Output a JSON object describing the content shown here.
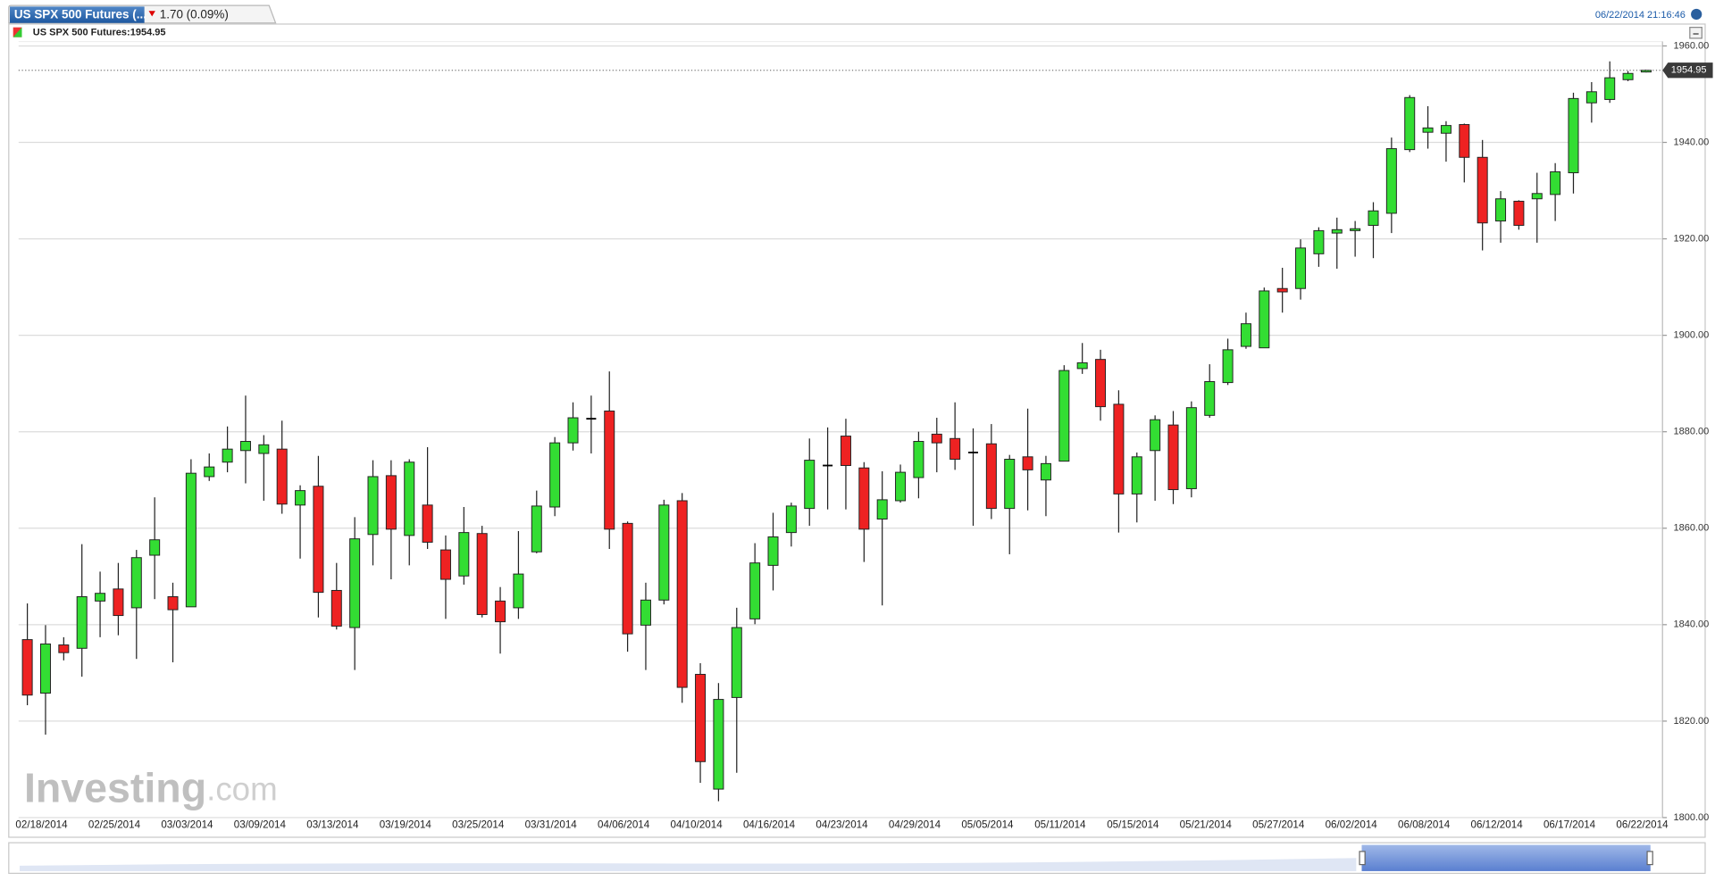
{
  "header": {
    "tab_title": "US SPX 500 Futures (...",
    "change": "1.70 (0.09%)",
    "timestamp": "06/22/2014 21:16:46"
  },
  "watermark": [
    "Investing",
    ".com"
  ],
  "chart_data": {
    "type": "candlestick",
    "title": "US SPX 500 Futures:1954.95",
    "up_color": "#33dd33",
    "down_color": "#ee2222",
    "flat_color": "#000000",
    "categories": [
      "02/18/2014",
      null,
      null,
      null,
      "02/25/2014",
      null,
      null,
      null,
      "03/03/2014",
      null,
      null,
      null,
      "03/09/2014",
      null,
      null,
      null,
      "03/13/2014",
      null,
      null,
      null,
      "03/19/2014",
      null,
      null,
      null,
      "03/25/2014",
      null,
      null,
      null,
      "03/31/2014",
      null,
      null,
      null,
      "04/06/2014",
      null,
      null,
      null,
      "04/10/2014",
      null,
      null,
      null,
      "04/16/2014",
      null,
      null,
      null,
      "04/23/2014",
      null,
      null,
      null,
      "04/29/2014",
      null,
      null,
      null,
      "05/05/2014",
      null,
      null,
      null,
      "05/11/2014",
      null,
      null,
      null,
      "05/15/2014",
      null,
      null,
      null,
      "05/21/2014",
      null,
      null,
      null,
      "05/27/2014",
      null,
      null,
      null,
      "06/02/2014",
      null,
      null,
      null,
      "06/08/2014",
      null,
      null,
      null,
      "06/12/2014",
      null,
      null,
      null,
      "06/17/2014",
      null,
      null,
      null,
      "06/22/2014",
      null
    ],
    "open": [
      1836.9,
      1825.8,
      1835.8,
      1835.1,
      1844.9,
      1847.4,
      1843.5,
      1854.4,
      1845.8,
      1843.7,
      1870.7,
      1873.7,
      1876.1,
      1875.5,
      1876.4,
      1864.8,
      1868.7,
      1847.1,
      1839.4,
      1858.7,
      1870.9,
      1858.5,
      1864.8,
      1855.5,
      1850.1,
      1858.9,
      1844.9,
      1843.5,
      1855.1,
      1864.4,
      1877.7,
      1882.7,
      1884.3,
      1861.0,
      1839.9,
      1845.1,
      1865.7,
      1829.7,
      1805.9,
      1824.9,
      1841.2,
      1852.3,
      1859.1,
      1864.1,
      1873.0,
      1879.1,
      1872.5,
      1861.9,
      1865.7,
      1870.5,
      1879.5,
      1878.6,
      1875.7,
      1877.5,
      1864.1,
      1874.8,
      1870.0,
      1873.9,
      1893.1,
      1895.0,
      1885.7,
      1867.1,
      1876.1,
      1881.4,
      1868.2,
      1883.4,
      1890.2,
      1897.7,
      1897.4,
      1909.7,
      1909.7,
      1916.9,
      1921.2,
      1921.7,
      1922.8,
      1925.3,
      1938.5,
      1942.1,
      1941.9,
      1943.7,
      1936.9,
      1923.7,
      1927.8,
      1928.3,
      1929.2,
      1933.7,
      1948.2,
      1948.9,
      1953.0,
      1954.6
    ],
    "high": [
      1844.4,
      1839.9,
      1837.4,
      1856.7,
      1851.0,
      1852.8,
      1855.5,
      1866.4,
      1848.7,
      1874.3,
      1875.5,
      1881.1,
      1887.5,
      1879.3,
      1882.3,
      1868.9,
      1875.0,
      1852.8,
      1862.3,
      1874.1,
      1874.1,
      1874.3,
      1876.8,
      1858.5,
      1864.4,
      1860.5,
      1847.8,
      1859.4,
      1867.8,
      1878.9,
      1886.1,
      1887.5,
      1892.5,
      1861.4,
      1848.7,
      1865.9,
      1867.3,
      1832.0,
      1827.9,
      1843.5,
      1856.9,
      1863.2,
      1865.3,
      1878.6,
      1880.9,
      1882.7,
      1873.7,
      1871.8,
      1873.2,
      1880.0,
      1882.9,
      1886.1,
      1880.7,
      1881.6,
      1875.2,
      1884.8,
      1875.0,
      1893.8,
      1898.4,
      1897.0,
      1888.6,
      1875.7,
      1883.4,
      1884.3,
      1886.3,
      1894.0,
      1899.3,
      1904.7,
      1909.9,
      1914.0,
      1919.9,
      1922.4,
      1924.4,
      1923.7,
      1927.6,
      1941.0,
      1949.8,
      1947.5,
      1944.4,
      1943.9,
      1940.5,
      1929.9,
      1928.0,
      1933.7,
      1935.7,
      1950.3,
      1952.5,
      1956.8,
      1954.8,
      1955.1
    ],
    "low": [
      1823.3,
      1817.2,
      1832.6,
      1829.2,
      1837.4,
      1837.8,
      1832.9,
      1845.3,
      1832.2,
      1843.7,
      1869.8,
      1871.6,
      1869.3,
      1865.7,
      1863.0,
      1853.7,
      1841.5,
      1839.0,
      1830.6,
      1852.3,
      1849.4,
      1852.3,
      1855.7,
      1841.2,
      1848.3,
      1841.5,
      1834.0,
      1841.2,
      1854.8,
      1862.5,
      1876.1,
      1875.5,
      1855.7,
      1834.4,
      1830.6,
      1844.2,
      1823.8,
      1807.2,
      1803.4,
      1809.3,
      1840.1,
      1847.1,
      1856.2,
      1860.5,
      1863.9,
      1863.9,
      1853.0,
      1844.0,
      1865.3,
      1866.2,
      1871.6,
      1872.1,
      1860.5,
      1861.9,
      1854.6,
      1863.7,
      1862.5,
      1873.9,
      1892.0,
      1882.3,
      1859.1,
      1861.2,
      1865.7,
      1865.0,
      1866.4,
      1882.9,
      1889.7,
      1897.2,
      1897.4,
      1904.7,
      1907.4,
      1914.2,
      1913.8,
      1916.3,
      1916.0,
      1921.2,
      1938.0,
      1938.7,
      1936.0,
      1931.7,
      1917.6,
      1919.2,
      1921.9,
      1919.2,
      1923.7,
      1929.4,
      1944.1,
      1948.2,
      1952.7,
      1954.5
    ],
    "close": [
      1825.4,
      1836.0,
      1834.2,
      1845.8,
      1846.5,
      1841.9,
      1853.9,
      1857.6,
      1843.1,
      1871.4,
      1872.7,
      1876.4,
      1878.0,
      1877.3,
      1865.0,
      1867.8,
      1846.7,
      1839.7,
      1857.8,
      1870.7,
      1859.8,
      1873.7,
      1857.1,
      1849.4,
      1859.1,
      1842.1,
      1840.6,
      1850.5,
      1864.6,
      1877.7,
      1882.9,
      1882.7,
      1859.8,
      1838.1,
      1845.1,
      1864.8,
      1827.0,
      1811.6,
      1824.5,
      1839.4,
      1852.8,
      1858.2,
      1864.6,
      1874.1,
      1873.0,
      1873.0,
      1859.8,
      1865.9,
      1871.6,
      1878.0,
      1877.7,
      1874.3,
      1875.7,
      1864.1,
      1874.3,
      1872.1,
      1873.4,
      1892.7,
      1894.3,
      1885.2,
      1867.1,
      1874.8,
      1882.5,
      1868.0,
      1885.0,
      1890.4,
      1897.0,
      1902.4,
      1909.2,
      1909.0,
      1918.1,
      1921.7,
      1921.9,
      1922.1,
      1925.8,
      1938.7,
      1949.3,
      1943.0,
      1943.5,
      1936.9,
      1923.3,
      1928.3,
      1922.8,
      1929.4,
      1933.9,
      1949.1,
      1950.5,
      1953.4,
      1954.3,
      1954.95
    ],
    "ylim": [
      1800,
      1960
    ],
    "yticks": [
      {
        "value": 1800,
        "label": "1800.00"
      },
      {
        "value": 1820,
        "label": "1820.00"
      },
      {
        "value": 1840,
        "label": "1840.00"
      },
      {
        "value": 1860,
        "label": "1860.00"
      },
      {
        "value": 1880,
        "label": "1880.00"
      },
      {
        "value": 1900,
        "label": "1900.00"
      },
      {
        "value": 1920,
        "label": "1920.00"
      },
      {
        "value": 1940,
        "label": "1940.00"
      },
      {
        "value": 1960,
        "label": "1960.00"
      }
    ],
    "grid": true
  }
}
